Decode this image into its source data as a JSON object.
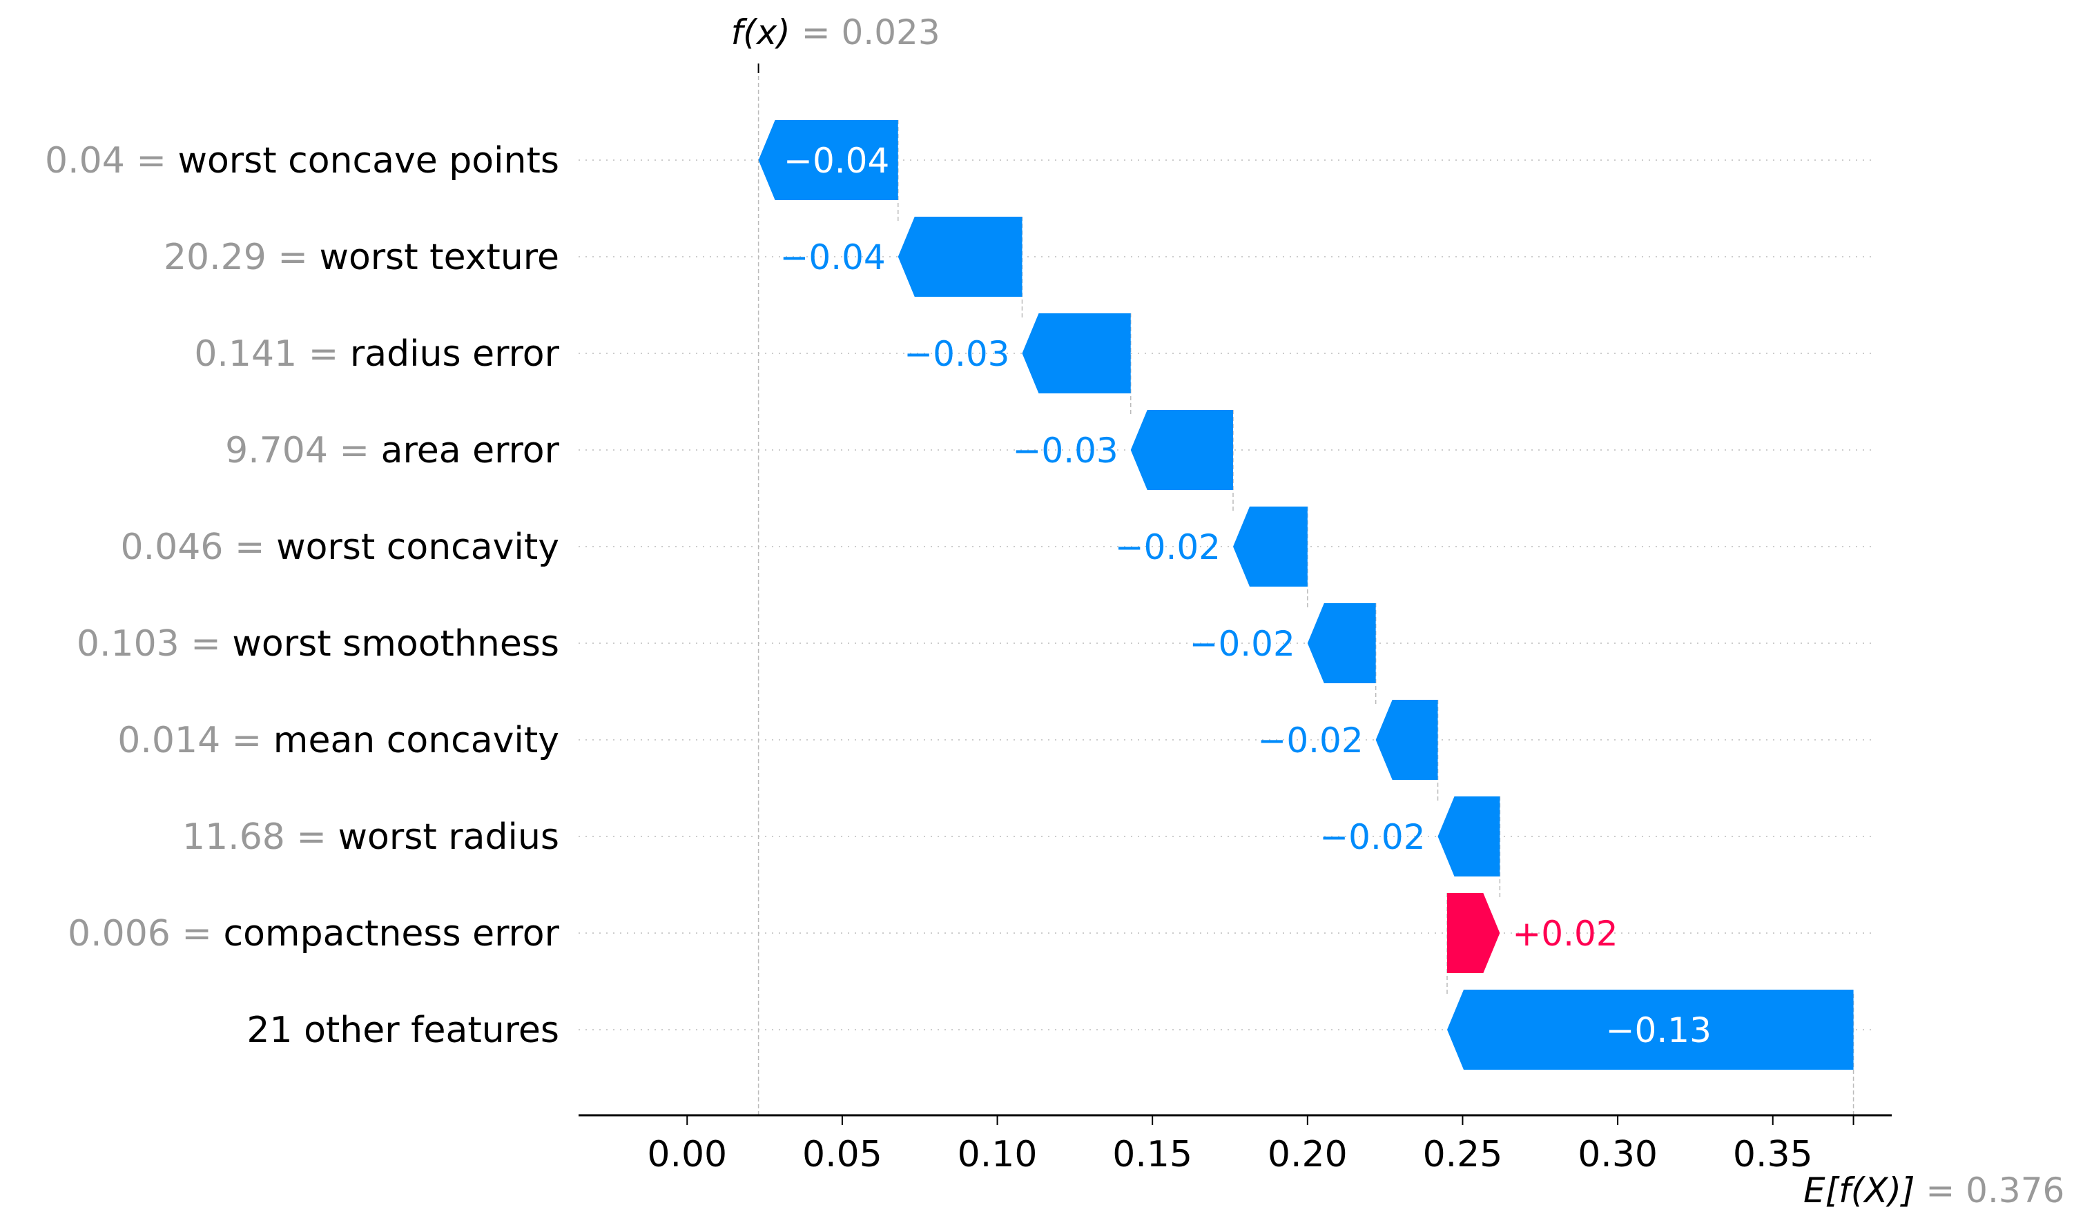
{
  "chart_data": {
    "type": "waterfall",
    "base_value": 0.376,
    "output_value": 0.023,
    "fx_label": "f(x)",
    "fx_value": "0.023",
    "efx_label": "E[f(X)]",
    "efx_value": "0.376",
    "xlim": [
      -0.035,
      0.385
    ],
    "xticks": [
      0.0,
      0.05,
      0.1,
      0.15,
      0.2,
      0.25,
      0.3,
      0.35
    ],
    "xtick_labels": [
      "0.00",
      "0.05",
      "0.10",
      "0.15",
      "0.20",
      "0.25",
      "0.30",
      "0.35"
    ],
    "features": [
      {
        "value": "0.04",
        "name": "worst concave points",
        "start": 0.068,
        "end": 0.023,
        "label": "−0.04"
      },
      {
        "value": "20.29",
        "name": "worst texture",
        "start": 0.108,
        "end": 0.068,
        "label": "−0.04"
      },
      {
        "value": "0.141",
        "name": "radius error",
        "start": 0.143,
        "end": 0.108,
        "label": "−0.03"
      },
      {
        "value": "9.704",
        "name": "area error",
        "start": 0.176,
        "end": 0.143,
        "label": "−0.03"
      },
      {
        "value": "0.046",
        "name": "worst concavity",
        "start": 0.2,
        "end": 0.176,
        "label": "−0.02"
      },
      {
        "value": "0.103",
        "name": "worst smoothness",
        "start": 0.222,
        "end": 0.2,
        "label": "−0.02"
      },
      {
        "value": "0.014",
        "name": "mean concavity",
        "start": 0.242,
        "end": 0.222,
        "label": "−0.02"
      },
      {
        "value": "11.68",
        "name": "worst radius",
        "start": 0.262,
        "end": 0.242,
        "label": "−0.02"
      },
      {
        "value": "0.006",
        "name": "compactness error",
        "start": 0.245,
        "end": 0.262,
        "label": "+0.02"
      },
      {
        "value": "",
        "name": "21 other features",
        "start": 0.376,
        "end": 0.245,
        "label": "−0.13"
      }
    ]
  },
  "colors": {
    "negative": "#008bfb",
    "positive": "#ff0051",
    "feature_value": "#999999",
    "text": "#000000",
    "grid": "#cccccc",
    "inside_label": "#ffffff"
  }
}
